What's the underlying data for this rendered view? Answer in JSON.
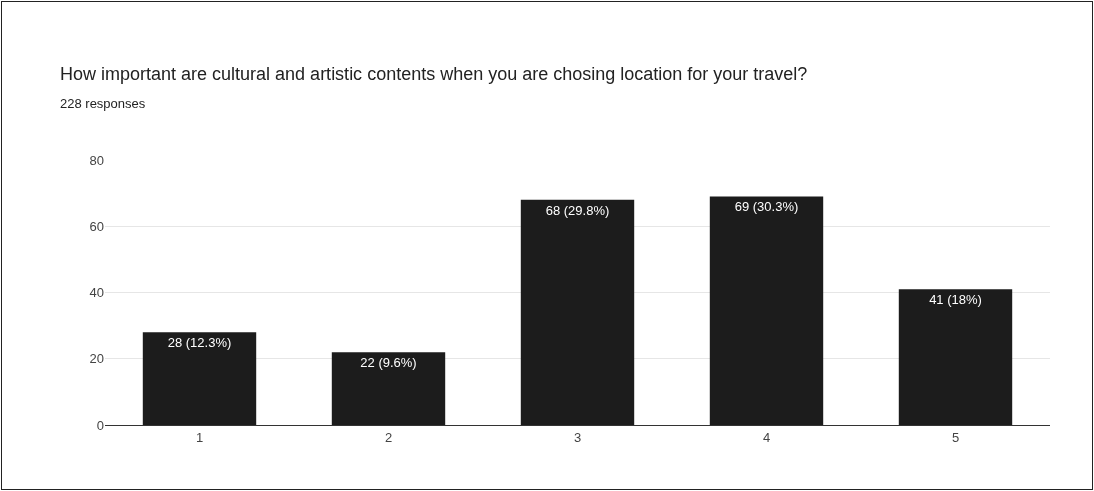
{
  "chart_data": {
    "type": "bar",
    "title": "How important are cultural and artistic contents when you are chosing location for your travel?",
    "subtitle": "228 responses",
    "categories": [
      "1",
      "2",
      "3",
      "4",
      "5"
    ],
    "values": [
      28,
      22,
      68,
      69,
      41
    ],
    "value_labels": [
      "28 (12.3%)",
      "22 (9.6%)",
      "68 (29.8%)",
      "69 (30.3%)",
      "41 (18%)"
    ],
    "color": "#1c1c1c",
    "ylim": [
      0,
      80
    ],
    "yticks": [
      0,
      20,
      40,
      60,
      80
    ],
    "grid": "y"
  }
}
